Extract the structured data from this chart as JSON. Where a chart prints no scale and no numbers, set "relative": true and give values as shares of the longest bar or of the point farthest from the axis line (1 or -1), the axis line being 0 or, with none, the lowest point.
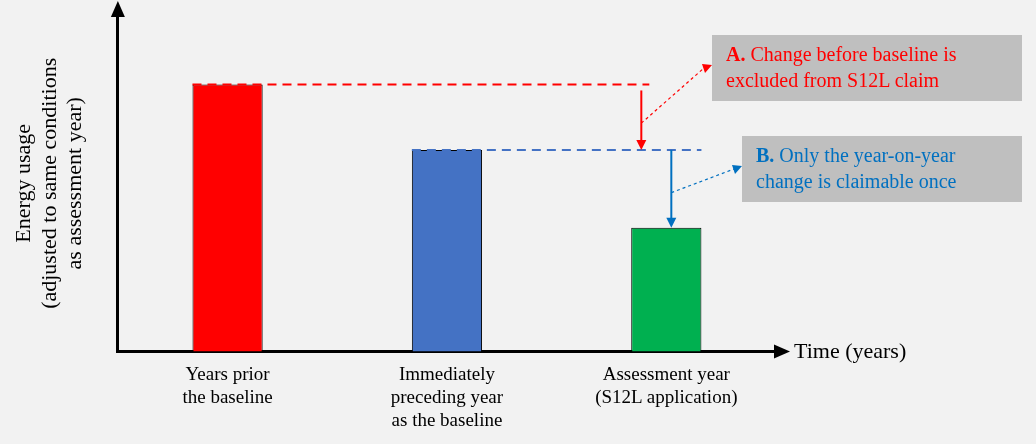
{
  "chart_data": {
    "type": "bar",
    "relative": true,
    "categories": [
      "Years prior\nthe baseline",
      "Immediately\npreceding year\nas the baseline",
      "Assessment year\n(S12L application)"
    ],
    "values": [
      1,
      0.755,
      0.464
    ],
    "colors": [
      "#ff0000",
      "#4472c4",
      "#00b050"
    ],
    "xlabel": "Time (years)",
    "ylabel": "Energy usage\n(adjusted to same conditions\nas assessment year)",
    "ref_lines": [
      {
        "axis": "y",
        "value": 1,
        "color": "#ff0000",
        "line_style": "dashed"
      },
      {
        "axis": "y",
        "value": 0.755,
        "color": "#4472c4",
        "line_style": "dashed"
      }
    ],
    "annotations": [
      "A. Change before baseline is excluded from S12L claim",
      "B. Only the year-on-year change is claimable once"
    ]
  }
}
